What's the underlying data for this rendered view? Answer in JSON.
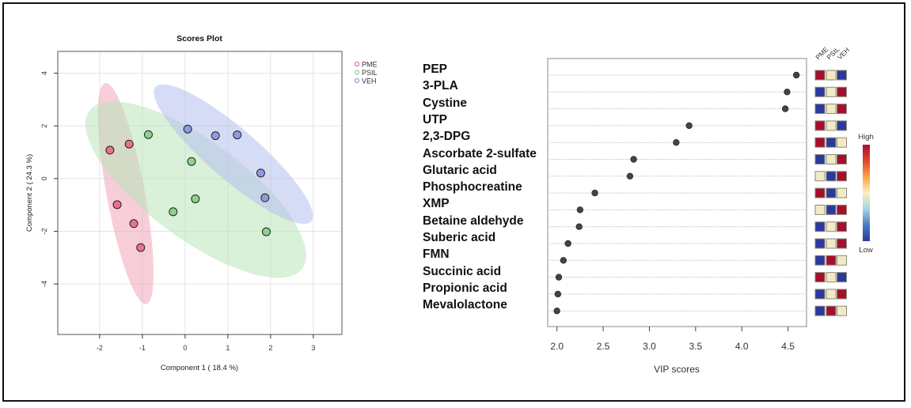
{
  "chart_data": [
    {
      "type": "scatter",
      "title": "Scores Plot",
      "xlabel": "Component 1 ( 18.4 %)",
      "ylabel": "Component 2 ( 24.3 %)",
      "xlim": [
        -2.98,
        3.67
      ],
      "ylim": [
        -5.92,
        4.83
      ],
      "xticks": [
        -2,
        -1,
        0,
        1,
        2,
        3
      ],
      "yticks": [
        -4,
        -2,
        0,
        2,
        4
      ],
      "xtick_labels": [
        "-2",
        "-1",
        "0",
        "1",
        "2",
        "3"
      ],
      "ytick_labels": [
        "-4",
        "-2",
        "0",
        "2",
        "4"
      ],
      "grid": true,
      "legend_position": "top-right-outside",
      "series": [
        {
          "name": "PME",
          "color": "#e8728f",
          "ellipse_color": "#f1a6b8",
          "points": [
            [
              -1.76,
              1.08
            ],
            [
              -1.31,
              1.31
            ],
            [
              -1.59,
              -0.99
            ],
            [
              -1.2,
              -1.71
            ],
            [
              -1.04,
              -2.62
            ]
          ],
          "ellipse": {
            "center": [
              -1.39,
              -0.57
            ],
            "major_tip": [
              -1.87,
              3.63
            ],
            "minor_tip": [
              -0.95,
              -0.44
            ]
          }
        },
        {
          "name": "PSIL",
          "color": "#8fd08f",
          "ellipse_color": "#b9e3b9",
          "points": [
            [
              -0.86,
              1.67
            ],
            [
              0.15,
              0.65
            ],
            [
              0.24,
              -0.77
            ],
            [
              -0.28,
              -1.26
            ],
            [
              1.9,
              -2.02
            ]
          ],
          "ellipse": {
            "center": [
              0.25,
              -0.42
            ],
            "major_tip": [
              -2.24,
              2.58
            ],
            "minor_tip": [
              0.93,
              1.07
            ]
          }
        },
        {
          "name": "VEH",
          "color": "#8d9ce0",
          "ellipse_color": "#b5c0ee",
          "points": [
            [
              0.06,
              1.88
            ],
            [
              0.71,
              1.63
            ],
            [
              1.22,
              1.66
            ],
            [
              1.77,
              0.21
            ],
            [
              1.87,
              -0.73
            ]
          ],
          "ellipse": {
            "center": [
              1.13,
              0.93
            ],
            "major_tip": [
              -0.69,
              3.48
            ],
            "minor_tip": [
              1.52,
              1.65
            ]
          }
        }
      ]
    },
    {
      "type": "scatter",
      "subtype": "dot-plot",
      "title": "",
      "xlabel": "VIP scores",
      "ylabel": "",
      "xlim": [
        1.9,
        4.7
      ],
      "xticks": [
        2.0,
        2.5,
        3.0,
        3.5,
        4.0,
        4.5
      ],
      "xtick_labels": [
        "2.0",
        "2.5",
        "3.0",
        "3.5",
        "4.0",
        "4.5"
      ],
      "grid": "horizontal-dotted",
      "categories": [
        "PEP",
        "3-PLA",
        "Cystine",
        "UTP",
        "2,3-DPG",
        "Ascorbate 2-sulfate",
        "Glutaric acid",
        "Phosphocreatine",
        "XMP",
        "Betaine aldehyde",
        "Suberic acid",
        "FMN",
        "Succinic acid",
        "Propionic acid",
        "Mevalolactone"
      ],
      "values": [
        4.59,
        4.49,
        4.47,
        3.43,
        3.29,
        2.83,
        2.79,
        2.41,
        2.25,
        2.24,
        2.12,
        2.07,
        2.02,
        2.01,
        2.0
      ],
      "heatmap": {
        "columns": [
          "PME",
          "PSIL",
          "VEH"
        ],
        "levels": {
          "high": "#a50f2d",
          "mid": "#f3e9c5",
          "low": "#2b3a9a"
        },
        "rows": [
          [
            "high",
            "mid",
            "low"
          ],
          [
            "low",
            "mid",
            "high"
          ],
          [
            "low",
            "mid",
            "high"
          ],
          [
            "high",
            "mid",
            "low"
          ],
          [
            "high",
            "low",
            "mid"
          ],
          [
            "low",
            "mid",
            "high"
          ],
          [
            "mid",
            "low",
            "high"
          ],
          [
            "high",
            "low",
            "mid"
          ],
          [
            "mid",
            "low",
            "high"
          ],
          [
            "low",
            "mid",
            "high"
          ],
          [
            "low",
            "mid",
            "high"
          ],
          [
            "low",
            "high",
            "mid"
          ],
          [
            "high",
            "mid",
            "low"
          ],
          [
            "low",
            "mid",
            "high"
          ],
          [
            "low",
            "high",
            "mid"
          ]
        ]
      },
      "colorbar": {
        "high_label": "High",
        "low_label": "Low",
        "stops": [
          "#2b3a9a",
          "#4a7bbf",
          "#a8d5e6",
          "#fbeec0",
          "#f9a44a",
          "#e0452c",
          "#a50f2d"
        ]
      }
    }
  ]
}
